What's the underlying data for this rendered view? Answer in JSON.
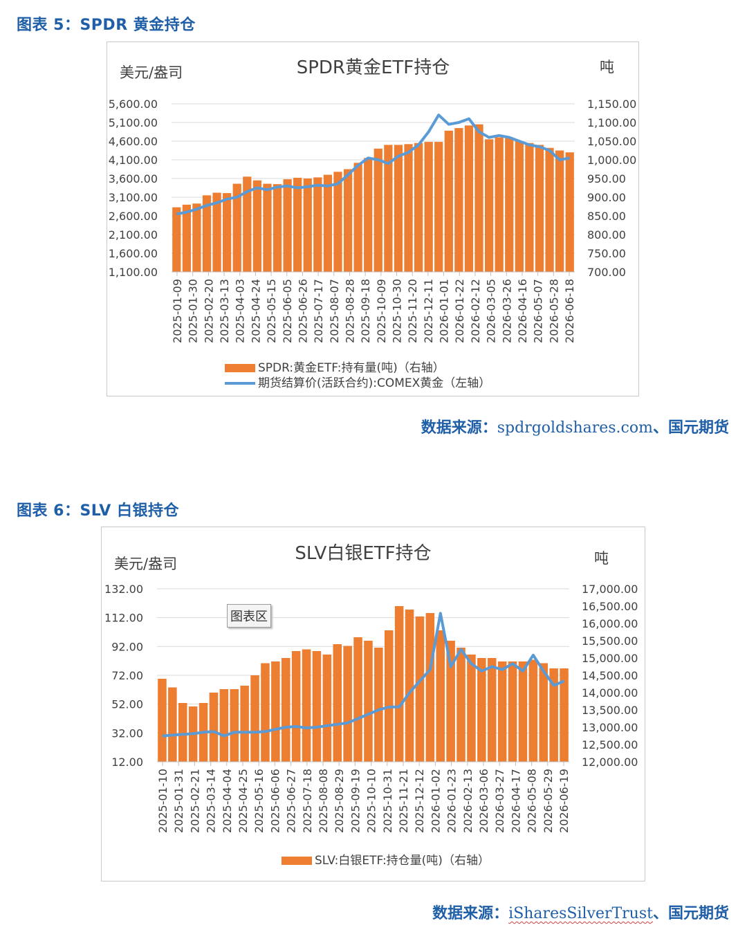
{
  "figure1": {
    "caption": "图表 5：SPDR 黄金持仓",
    "source_label": "数据来源：",
    "source_site": "spdrgoldshares.com",
    "source_tail": "、国元期货",
    "chart_data": {
      "type": "bar+line",
      "title": "SPDR黄金ETF持仓",
      "left_unit": "美元/盎司",
      "right_unit": "吨",
      "left_ticks": [
        "5,600.00",
        "5,100.00",
        "4,600.00",
        "4,100.00",
        "3,600.00",
        "3,100.00",
        "2,600.00",
        "2,100.00",
        "1,600.00",
        "1,100.00"
      ],
      "right_ticks": [
        "1,150.00",
        "1,100.00",
        "1,050.00",
        "1,000.00",
        "950.00",
        "900.00",
        "850.00",
        "800.00",
        "750.00",
        "700.00"
      ],
      "left_range": [
        1100,
        5600
      ],
      "right_range": [
        700,
        1150
      ],
      "x_ticks": [
        "2025-01-09",
        "2025-01-30",
        "2025-02-20",
        "2025-03-13",
        "2025-04-03",
        "2025-04-24",
        "2025-05-15",
        "2025-06-05",
        "2025-06-26",
        "2025-07-17",
        "2025-08-07",
        "2025-08-28",
        "2025-09-18",
        "2025-10-09",
        "2025-10-30",
        "2025-11-20",
        "2025-12-11",
        "2026-01-01",
        "2026-01-22",
        "2026-02-12",
        "2026-03-05",
        "2026-03-26",
        "2026-04-16",
        "2026-05-07",
        "2026-05-28",
        "2026-06-18"
      ],
      "series": [
        {
          "name": "SPDR:黄金ETF:持有量(吨)（右轴）",
          "kind": "bar",
          "axis": "right",
          "color": "#ed7d31",
          "values": [
            873,
            880,
            883,
            905,
            912,
            911,
            936,
            955,
            945,
            936,
            935,
            948,
            952,
            950,
            953,
            960,
            968,
            975,
            992,
            1005,
            1030,
            1040,
            1040,
            1042,
            1045,
            1048,
            1048,
            1078,
            1085,
            1092,
            1095,
            1055,
            1060,
            1058,
            1050,
            1045,
            1040,
            1032,
            1025,
            1020
          ]
        },
        {
          "name": "期货结算价(活跃合约):COMEX黄金（左轴）",
          "kind": "line",
          "axis": "left",
          "color": "#5b9bd5",
          "values": [
            2650,
            2700,
            2780,
            2880,
            2950,
            3050,
            3100,
            3250,
            3350,
            3300,
            3370,
            3400,
            3350,
            3380,
            3420,
            3400,
            3460,
            3700,
            3950,
            4150,
            4100,
            4000,
            4200,
            4300,
            4500,
            4850,
            5300,
            5050,
            5100,
            5200,
            4850,
            4700,
            4750,
            4700,
            4600,
            4500,
            4450,
            4350,
            4100,
            4150
          ]
        }
      ]
    }
  },
  "figure2": {
    "caption": "图表 6：SLV 白银持仓",
    "badge": "图表区",
    "source_label": "数据来源：",
    "source_site": "iSharesSilverTrust",
    "source_tail": "、国元期货",
    "chart_data": {
      "type": "bar+line",
      "title": "SLV白银ETF持仓",
      "left_unit": "美元/盎司",
      "right_unit": "吨",
      "left_ticks": [
        "132.00",
        "112.00",
        "92.00",
        "72.00",
        "52.00",
        "32.00",
        "12.00"
      ],
      "right_ticks": [
        "17,000.00",
        "16,500.00",
        "16,000.00",
        "15,500.00",
        "15,000.00",
        "14,500.00",
        "14,000.00",
        "13,500.00",
        "13,000.00",
        "12,500.00",
        "12,000.00"
      ],
      "left_range": [
        12,
        132
      ],
      "right_range": [
        12000,
        17000
      ],
      "x_ticks": [
        "2025-01-10",
        "2025-01-31",
        "2025-02-21",
        "2025-03-14",
        "2025-04-04",
        "2025-04-25",
        "2025-05-16",
        "2025-06-06",
        "2025-06-27",
        "2025-07-18",
        "2025-08-08",
        "2025-08-29",
        "2025-09-19",
        "2025-10-10",
        "2025-10-31",
        "2025-11-21",
        "2025-12-12",
        "2026-01-02",
        "2026-01-23",
        "2026-02-13",
        "2026-03-06",
        "2026-03-27",
        "2026-04-17",
        "2026-05-08",
        "2026-05-29",
        "2026-06-19"
      ],
      "series": [
        {
          "name": "SLV:白银ETF:持仓量(吨)（右轴）",
          "kind": "bar",
          "axis": "right",
          "color": "#ed7d31",
          "values": [
            14400,
            14150,
            13700,
            13600,
            13700,
            14000,
            14100,
            14100,
            14200,
            14500,
            14850,
            14900,
            15000,
            15200,
            15250,
            15200,
            15100,
            15400,
            15350,
            15600,
            15500,
            15300,
            15800,
            16500,
            16400,
            16200,
            16300,
            15800,
            15500,
            15300,
            15100,
            15000,
            15000,
            14900,
            14900,
            14900,
            14950,
            14850,
            14700,
            14700
          ]
        },
        {
          "name": "",
          "kind": "line",
          "axis": "left",
          "color": "#5b9bd5",
          "values": [
            30,
            30.5,
            31,
            31.5,
            32.5,
            33,
            30,
            32.5,
            32.5,
            32.5,
            33,
            34.5,
            36,
            36.5,
            35.5,
            36,
            37,
            38,
            39,
            42,
            45,
            48,
            50,
            50,
            60,
            68,
            76,
            115,
            78,
            90,
            80,
            75,
            78,
            76,
            80,
            75,
            86,
            75,
            65,
            68
          ]
        }
      ],
      "legend": [
        "SLV:白银ETF:持仓量(吨)（右轴）"
      ]
    }
  }
}
